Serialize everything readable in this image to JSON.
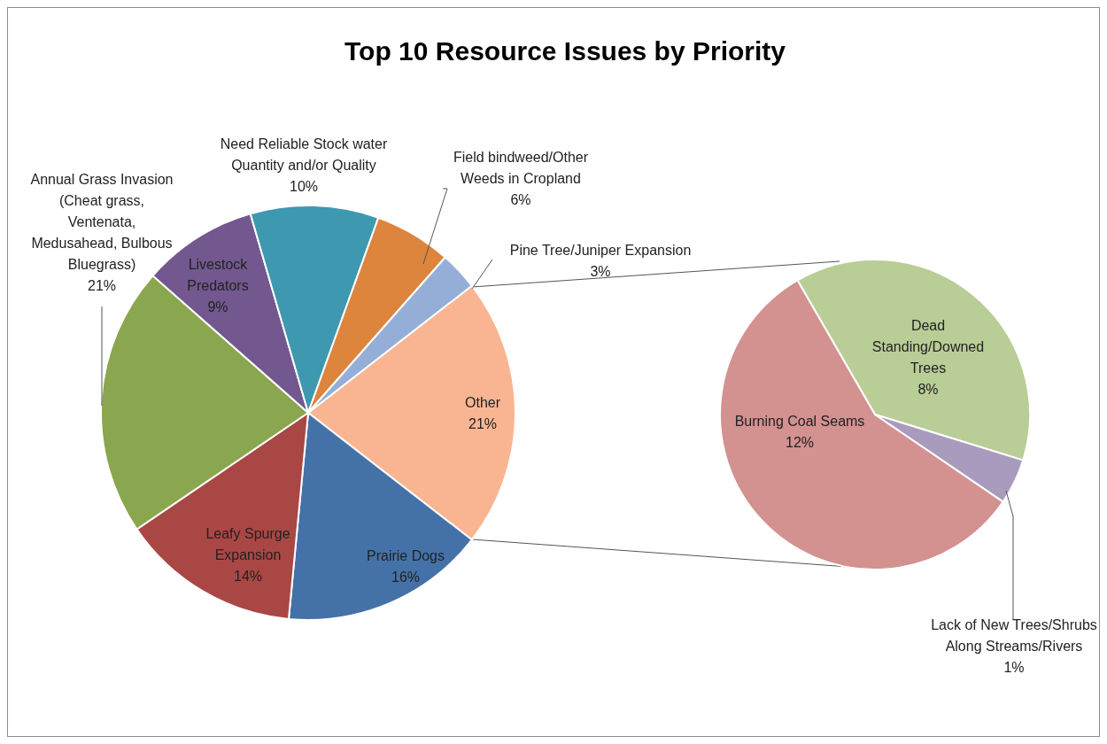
{
  "chart_data": [
    {
      "type": "pie",
      "title": "Top 10 Resource Issues by Priority",
      "categories": [
        "Other",
        "Prairie Dogs",
        "Leafy Spurge Expansion",
        "Annual Grass Invasion (Cheat grass, Ventenata, Medusahead, Bulbous Bluegrass)",
        "Livestock Predators",
        "Need Reliable Stock water Quantity and/or Quality",
        "Field bindweed/Other Weeds in Cropland",
        "Pine Tree/Juniper Expansion"
      ],
      "values": [
        21,
        16,
        14,
        21,
        9,
        10,
        6,
        3
      ],
      "colors": [
        "#f9b592",
        "#4472a8",
        "#a94744",
        "#8aa64e",
        "#72588f",
        "#3e98b0",
        "#dd843d",
        "#95aed8"
      ],
      "value_labels": [
        "21%",
        "16%",
        "14%",
        "21%",
        "9%",
        "10%",
        "6%",
        "3%"
      ]
    },
    {
      "type": "pie",
      "categories": [
        "Dead Standing/Downed Trees",
        "Lack of New Trees/Shrubs Along Streams/Rivers",
        "Burning Coal Seams"
      ],
      "values": [
        8,
        1,
        12
      ],
      "colors": [
        "#b9cd96",
        "#a99bbd",
        "#d39190"
      ],
      "value_labels": [
        "8%",
        "1%",
        "12%"
      ]
    }
  ]
}
